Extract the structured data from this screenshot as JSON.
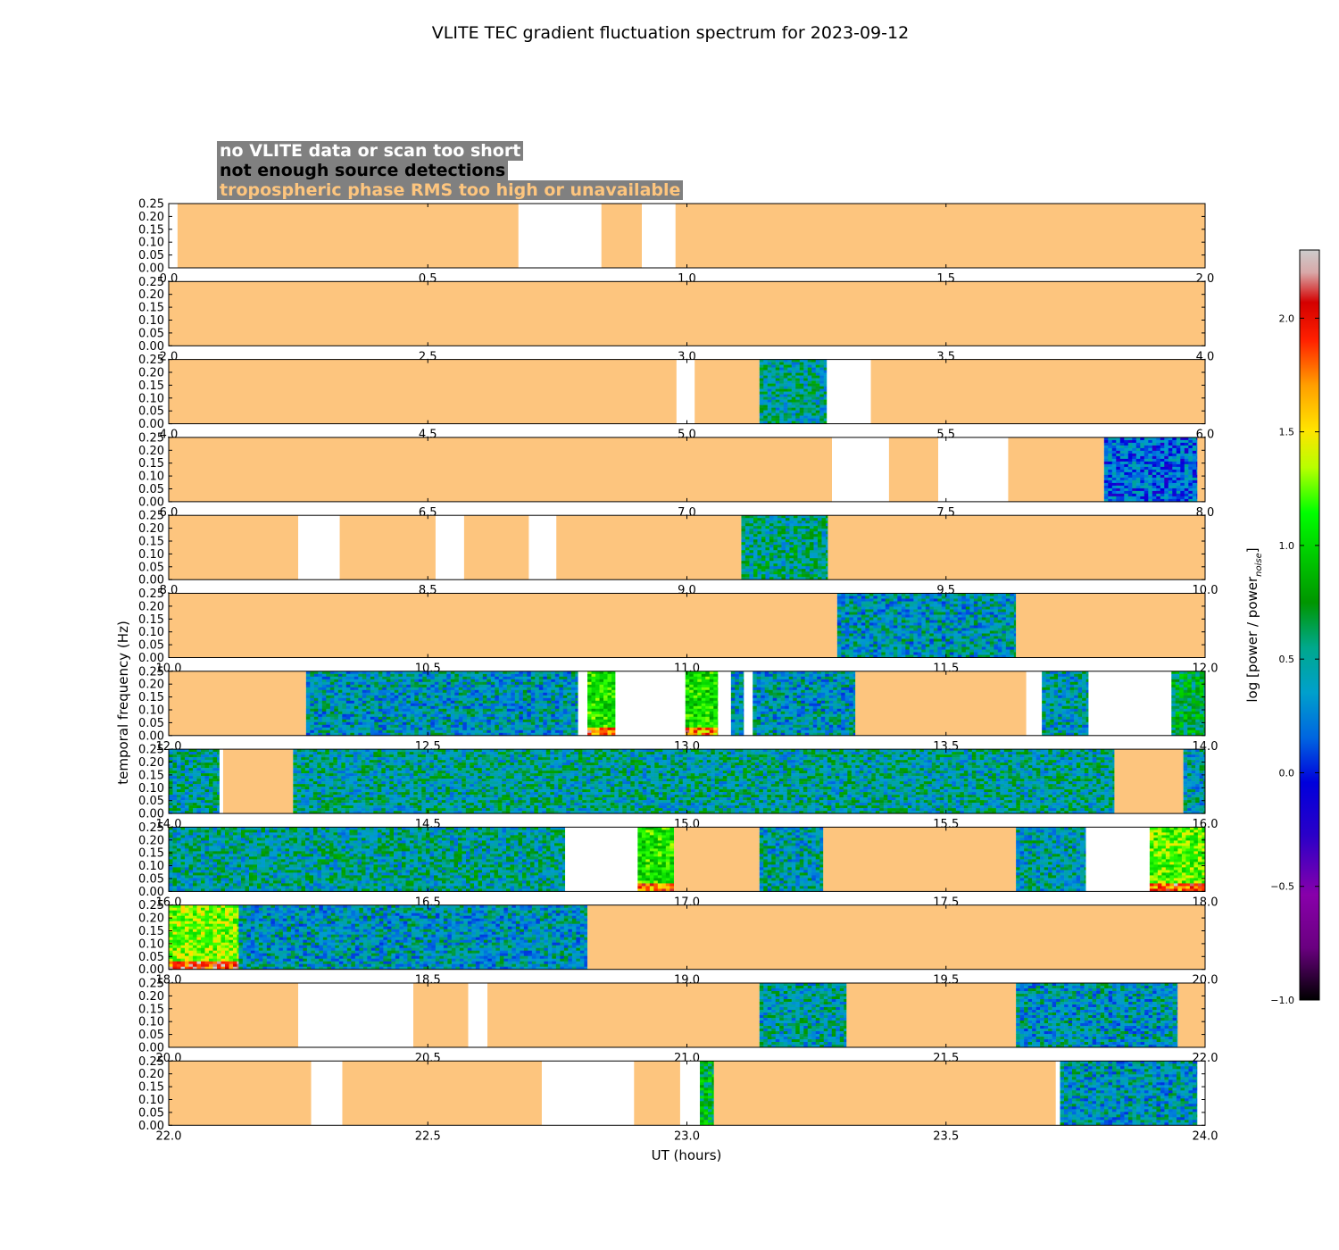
{
  "title": "VLITE TEC gradient fluctuation spectrum for 2023-09-12",
  "legend": [
    {
      "label": "no VLITE data or scan too short",
      "color": "#ffffff"
    },
    {
      "label": "not enough source detections",
      "color": "#000000"
    },
    {
      "label": "tropospheric phase RMS too high or unavailable",
      "color": "#fdc57e"
    }
  ],
  "colors": {
    "flag": "#fdc57e",
    "nodata": "#ffffff"
  },
  "chart_data": {
    "type": "heatmap",
    "xlabel": "UT (hours)",
    "ylabel": "temporal frequency (Hz)",
    "ylim": [
      0,
      0.25
    ],
    "yticks": [
      "0.00",
      "0.05",
      "0.10",
      "0.15",
      "0.20",
      "0.25"
    ],
    "colorbar": {
      "label": "log [power / power",
      "label_sub": "noise",
      "label_end": "]",
      "range": [
        -1.0,
        2.3
      ],
      "ticks": [
        "−1.0",
        "−0.5",
        "0.0",
        "0.5",
        "1.0",
        "1.5",
        "2.0"
      ]
    },
    "panels": [
      {
        "start": 0.0,
        "ticks": [
          "0.0",
          "0.5",
          "1.0",
          "1.5",
          "2.0"
        ],
        "segments": [
          [
            0,
            0.017,
            "nodata"
          ],
          [
            0.017,
            0.675,
            "flag"
          ],
          [
            0.675,
            0.835,
            "nodata"
          ],
          [
            0.835,
            0.913,
            "flag"
          ],
          [
            0.913,
            0.978,
            "nodata"
          ],
          [
            0.978,
            2.0,
            "flag"
          ]
        ]
      },
      {
        "start": 2.0,
        "ticks": [
          "2.0",
          "2.5",
          "3.0",
          "3.5",
          "4.0"
        ],
        "segments": [
          [
            2.0,
            4.0,
            "flag"
          ]
        ]
      },
      {
        "start": 4.0,
        "ticks": [
          "4.0",
          "4.5",
          "5.0",
          "5.5",
          "6.0"
        ],
        "segments": [
          [
            4.0,
            4.98,
            "flag"
          ],
          [
            4.98,
            5.015,
            "nodata"
          ],
          [
            5.015,
            5.14,
            "flag"
          ],
          [
            5.14,
            5.27,
            "spec:0.1"
          ],
          [
            5.27,
            5.355,
            "nodata"
          ],
          [
            5.355,
            6.0,
            "flag"
          ]
        ]
      },
      {
        "start": 6.0,
        "ticks": [
          "6.0",
          "6.5",
          "7.0",
          "7.5",
          "8.0"
        ],
        "segments": [
          [
            6.0,
            7.28,
            "flag"
          ],
          [
            7.28,
            7.39,
            "nodata"
          ],
          [
            7.39,
            7.485,
            "flag"
          ],
          [
            7.485,
            7.62,
            "nodata"
          ],
          [
            7.62,
            7.805,
            "flag"
          ],
          [
            7.805,
            7.985,
            "spec:-0.2"
          ],
          [
            7.985,
            8.0,
            "flag"
          ]
        ]
      },
      {
        "start": 8.0,
        "ticks": [
          "8.0",
          "8.5",
          "9.0",
          "9.5",
          "10.0"
        ],
        "segments": [
          [
            8.0,
            8.25,
            "flag"
          ],
          [
            8.25,
            8.33,
            "nodata"
          ],
          [
            8.33,
            8.515,
            "flag"
          ],
          [
            8.515,
            8.57,
            "nodata"
          ],
          [
            8.57,
            8.695,
            "flag"
          ],
          [
            8.695,
            8.748,
            "nodata"
          ],
          [
            8.748,
            9.105,
            "flag"
          ],
          [
            9.105,
            9.272,
            "spec:0.15"
          ],
          [
            9.272,
            10.0,
            "flag"
          ]
        ]
      },
      {
        "start": 10.0,
        "ticks": [
          "10.0",
          "10.5",
          "11.0",
          "11.5",
          "12.0"
        ],
        "segments": [
          [
            10.0,
            11.29,
            "flag"
          ],
          [
            11.29,
            11.635,
            "spec:0.0"
          ],
          [
            11.635,
            12.0,
            "flag"
          ]
        ]
      },
      {
        "start": 12.0,
        "ticks": [
          "12.0",
          "12.5",
          "13.0",
          "13.5",
          "14.0"
        ],
        "segments": [
          [
            12.0,
            12.265,
            "flag"
          ],
          [
            12.265,
            12.79,
            "spec:0.0"
          ],
          [
            12.79,
            12.808,
            "nodata"
          ],
          [
            12.808,
            12.862,
            "spec:0.75"
          ],
          [
            12.862,
            12.997,
            "nodata"
          ],
          [
            12.997,
            13.06,
            "spec:0.7"
          ],
          [
            13.06,
            13.085,
            "nodata"
          ],
          [
            13.085,
            13.11,
            "spec:0.0"
          ],
          [
            13.11,
            13.127,
            "nodata"
          ],
          [
            13.127,
            13.325,
            "spec:0.0"
          ],
          [
            13.325,
            13.655,
            "flag"
          ],
          [
            13.655,
            13.685,
            "nodata"
          ],
          [
            13.685,
            13.775,
            "spec:0.05"
          ],
          [
            13.775,
            13.935,
            "nodata"
          ],
          [
            13.935,
            14.0,
            "spec:0.3"
          ]
        ]
      },
      {
        "start": 14.0,
        "ticks": [
          "14.0",
          "14.5",
          "15.0",
          "15.5",
          "16.0"
        ],
        "segments": [
          [
            14.0,
            14.098,
            "spec:0.1"
          ],
          [
            14.098,
            14.105,
            "nodata"
          ],
          [
            14.105,
            14.24,
            "flag"
          ],
          [
            14.24,
            15.825,
            "spec:0.1"
          ],
          [
            15.825,
            15.958,
            "flag"
          ],
          [
            15.958,
            16.0,
            "spec:0.05"
          ]
        ]
      },
      {
        "start": 16.0,
        "ticks": [
          "16.0",
          "16.5",
          "17.0",
          "17.5",
          "18.0"
        ],
        "segments": [
          [
            16.0,
            16.765,
            "spec:0.1"
          ],
          [
            16.765,
            16.905,
            "nodata"
          ],
          [
            16.905,
            16.975,
            "spec:0.75"
          ],
          [
            16.975,
            17.14,
            "flag"
          ],
          [
            17.14,
            17.263,
            "spec:0.05"
          ],
          [
            17.263,
            17.635,
            "flag"
          ],
          [
            17.635,
            17.77,
            "spec:0.05"
          ],
          [
            17.77,
            17.893,
            "nodata"
          ],
          [
            17.893,
            18.0,
            "spec:0.9"
          ]
        ]
      },
      {
        "start": 18.0,
        "ticks": [
          "18.0",
          "18.5",
          "19.0",
          "19.5",
          "20.0"
        ],
        "segments": [
          [
            18.0,
            18.135,
            "spec:1.0"
          ],
          [
            18.135,
            18.808,
            "spec:0.0"
          ],
          [
            18.808,
            20.0,
            "flag"
          ]
        ]
      },
      {
        "start": 20.0,
        "ticks": [
          "20.0",
          "20.5",
          "21.0",
          "21.5",
          "22.0"
        ],
        "segments": [
          [
            20.0,
            20.25,
            "flag"
          ],
          [
            20.25,
            20.472,
            "nodata"
          ],
          [
            20.472,
            20.578,
            "flag"
          ],
          [
            20.578,
            20.615,
            "nodata"
          ],
          [
            20.615,
            21.14,
            "flag"
          ],
          [
            21.14,
            21.308,
            "spec:0.05"
          ],
          [
            21.308,
            21.635,
            "flag"
          ],
          [
            21.635,
            21.947,
            "spec:0.0"
          ],
          [
            21.947,
            22.0,
            "flag"
          ]
        ]
      },
      {
        "start": 22.0,
        "ticks": [
          "22.0",
          "22.5",
          "23.0",
          "23.5",
          "24.0"
        ],
        "segments": [
          [
            22.0,
            22.275,
            "flag"
          ],
          [
            22.275,
            22.335,
            "nodata"
          ],
          [
            22.335,
            22.72,
            "flag"
          ],
          [
            22.72,
            22.898,
            "nodata"
          ],
          [
            22.898,
            22.987,
            "flag"
          ],
          [
            22.987,
            23.025,
            "nodata"
          ],
          [
            23.025,
            23.052,
            "spec:0.4"
          ],
          [
            23.052,
            23.712,
            "flag"
          ],
          [
            23.712,
            23.72,
            "nodata"
          ],
          [
            23.72,
            23.985,
            "spec:0.0"
          ],
          [
            23.985,
            24.0,
            "nodata"
          ]
        ]
      }
    ]
  }
}
